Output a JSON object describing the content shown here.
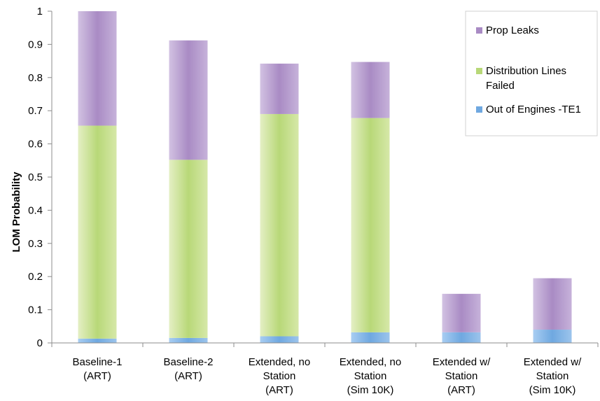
{
  "chart_data": {
    "type": "bar",
    "stacked": true,
    "title": "",
    "xlabel": "",
    "ylabel": "LOM Probability",
    "ylim": [
      0,
      1
    ],
    "yticks": [
      "0",
      "0.1",
      "0.2",
      "0.3",
      "0.4",
      "0.5",
      "0.6",
      "0.7",
      "0.8",
      "0.9",
      "1"
    ],
    "grid": false,
    "legend_position": "top-right",
    "categories": [
      [
        "Baseline-1",
        "(ART)"
      ],
      [
        "Baseline-2",
        "(ART)"
      ],
      [
        "Extended, no",
        "Station",
        "(ART)"
      ],
      [
        "Extended, no",
        "Station",
        "(Sim 10K)"
      ],
      [
        "Extended w/",
        "Station",
        "(ART)"
      ],
      [
        "Extended w/",
        "Station",
        "(Sim 10K)"
      ]
    ],
    "series": [
      {
        "name": "Out of Engines -TE1",
        "color": "#6fa8e0",
        "values": [
          0.013,
          0.015,
          0.02,
          0.032,
          0.032,
          0.04
        ]
      },
      {
        "name": "Distribution Lines Failed",
        "color": "#b8d878",
        "values": [
          0.642,
          0.537,
          0.67,
          0.646,
          0.0,
          0.0
        ]
      },
      {
        "name": "Prop Leaks",
        "color": "#a98bc4",
        "values": [
          0.345,
          0.36,
          0.152,
          0.169,
          0.116,
          0.155
        ]
      }
    ],
    "legend": [
      {
        "label_lines": [
          "Prop Leaks"
        ],
        "color": "#a98bc4"
      },
      {
        "label_lines": [
          "Distribution Lines",
          "Failed"
        ],
        "color": "#b8d878"
      },
      {
        "label_lines": [
          "Out of Engines -TE1"
        ],
        "color": "#6fa8e0"
      }
    ]
  }
}
